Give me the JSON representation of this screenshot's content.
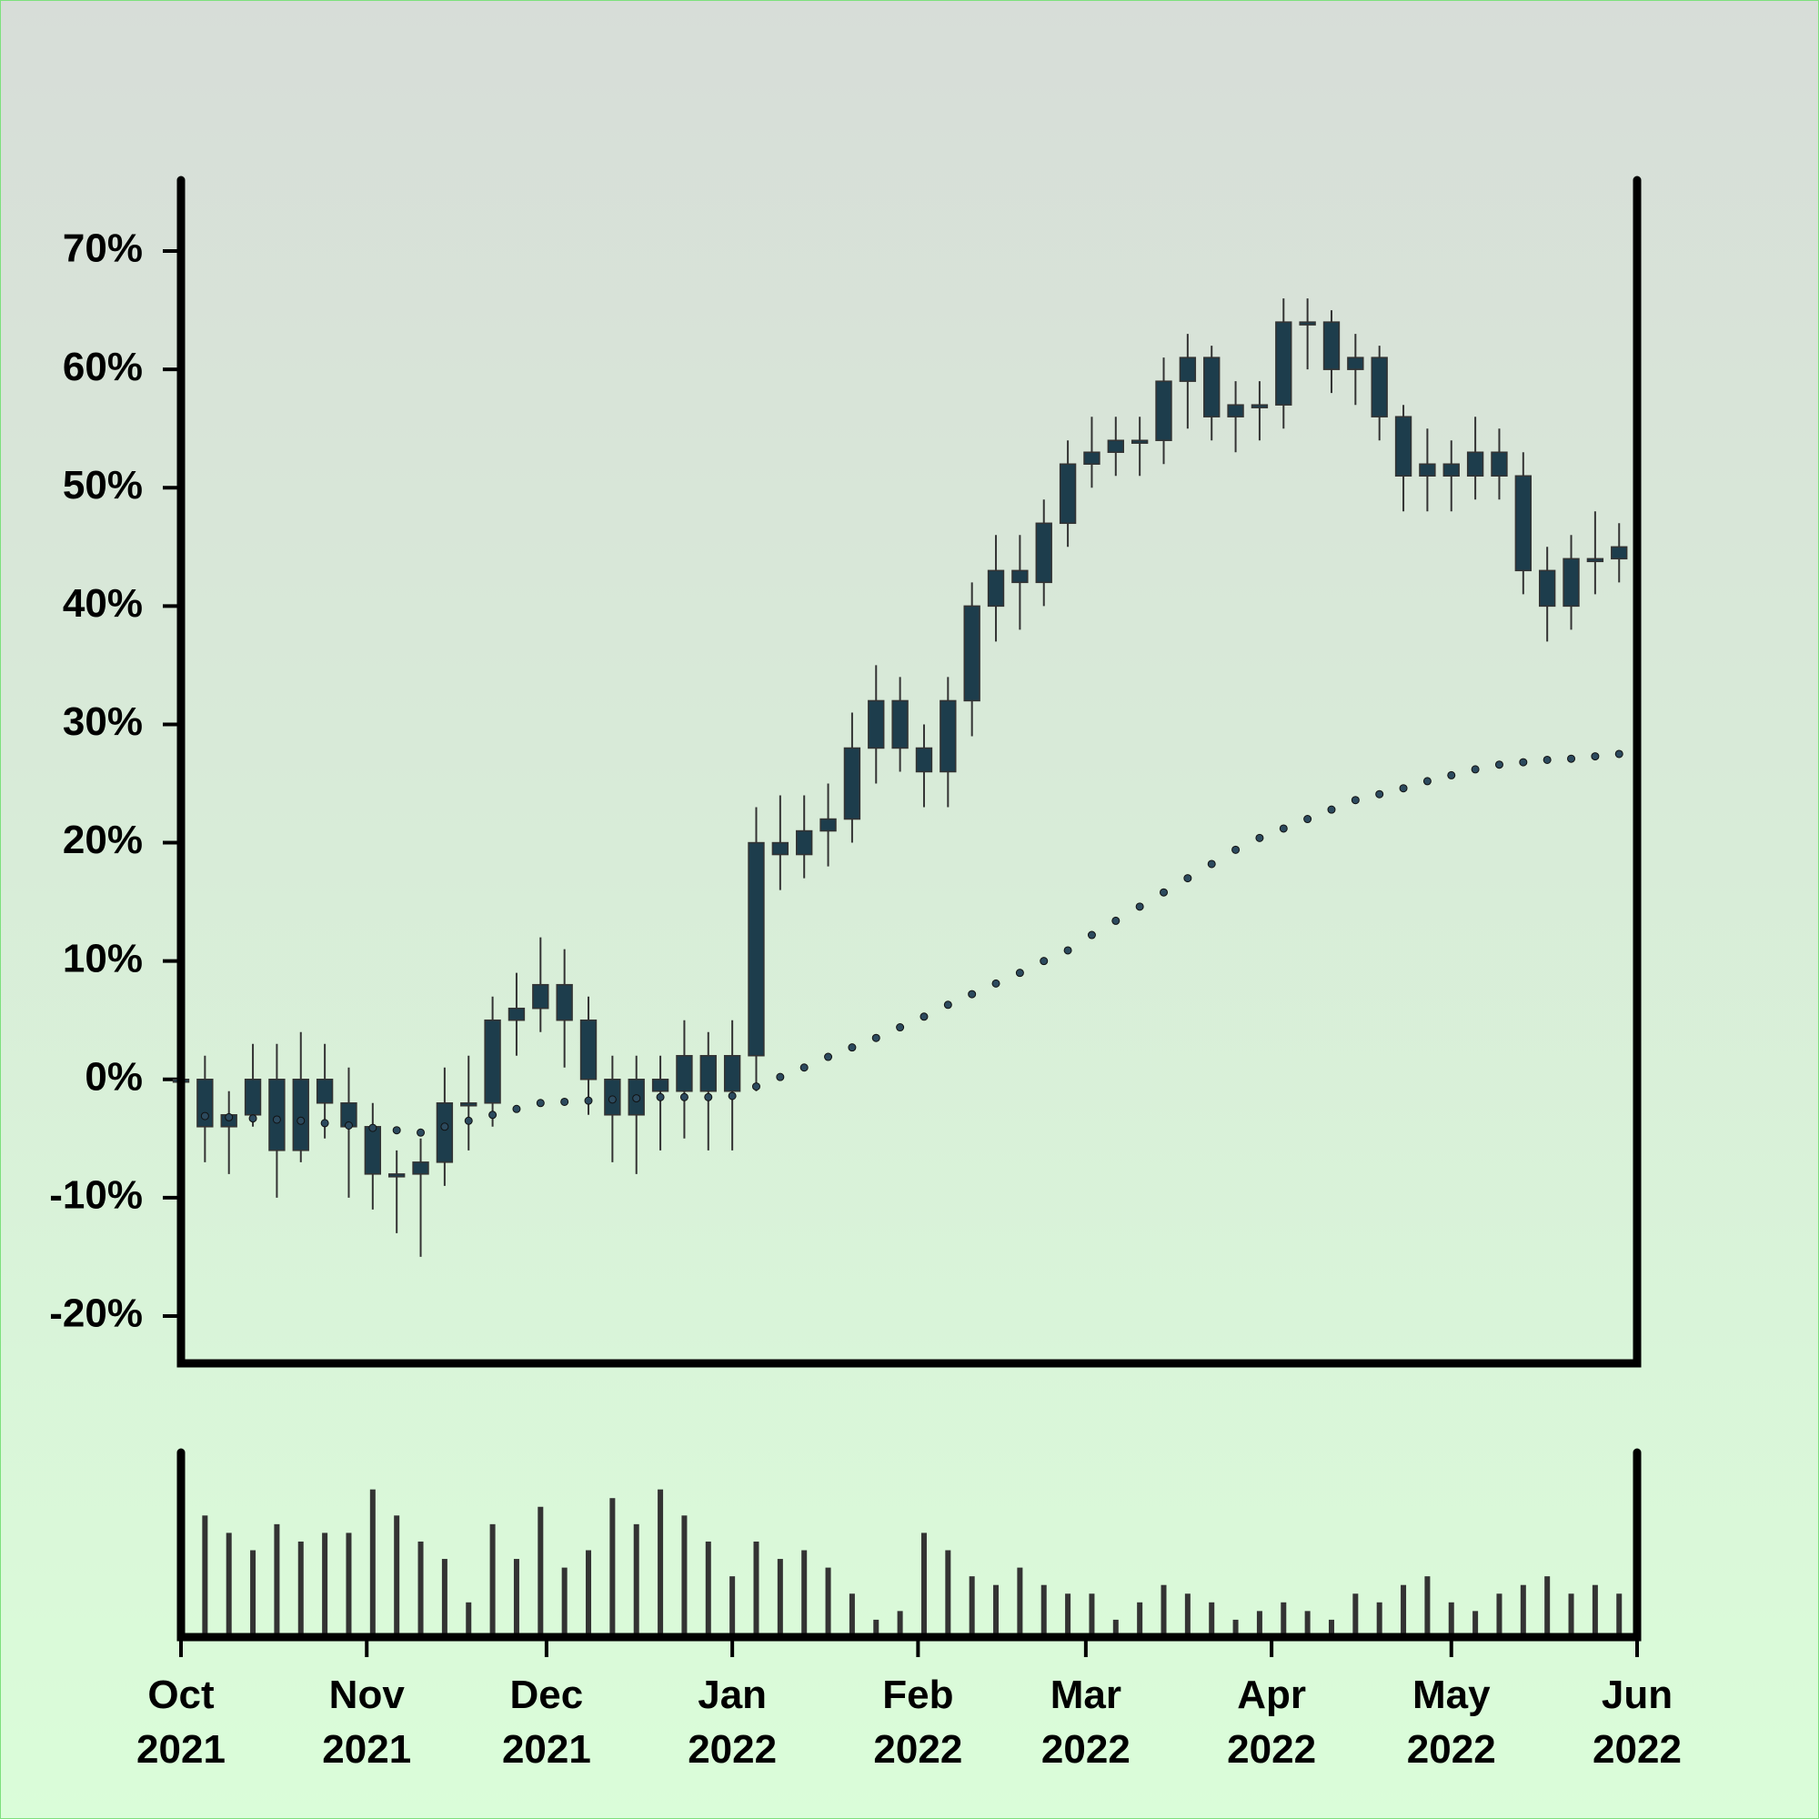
{
  "chart_data": {
    "type": "candlestick",
    "x": [
      0,
      4,
      8,
      12,
      16,
      20,
      24,
      28,
      32,
      36,
      40,
      44,
      48,
      52,
      56,
      60,
      64,
      68,
      72,
      76,
      80,
      84,
      88,
      92,
      96,
      100,
      104,
      108,
      112,
      116,
      120,
      124,
      128,
      132,
      136,
      140,
      144,
      148,
      152,
      156,
      160,
      164,
      168,
      172,
      176,
      180,
      184,
      188,
      192,
      196,
      200,
      204,
      208,
      212,
      216,
      220,
      224,
      228,
      232,
      236,
      240
    ],
    "open": [
      0,
      0,
      -4,
      -3,
      0,
      -6,
      0,
      -2,
      -4,
      -8,
      -8,
      -7,
      -2,
      -2,
      5,
      6,
      8,
      5,
      0,
      -3,
      0,
      -1,
      2,
      -1,
      2,
      20,
      19,
      21,
      22,
      28,
      32,
      28,
      26,
      32,
      40,
      43,
      42,
      47,
      52,
      53,
      54,
      54,
      59,
      61,
      56,
      57,
      57,
      64,
      64,
      60,
      61,
      56,
      51,
      52,
      51,
      53,
      51,
      43,
      40,
      44,
      44
    ],
    "high": [
      1,
      2,
      -1,
      3,
      3,
      4,
      3,
      1,
      -2,
      -6,
      -5,
      1,
      2,
      7,
      9,
      12,
      11,
      7,
      2,
      2,
      2,
      5,
      4,
      5,
      23,
      24,
      24,
      25,
      31,
      35,
      34,
      30,
      34,
      42,
      46,
      46,
      49,
      54,
      56,
      56,
      56,
      61,
      63,
      62,
      59,
      59,
      66,
      66,
      65,
      63,
      62,
      57,
      55,
      54,
      56,
      55,
      53,
      45,
      46,
      48,
      47
    ],
    "low": [
      -3,
      -7,
      -8,
      -4,
      -10,
      -7,
      -5,
      -10,
      -11,
      -13,
      -15,
      -9,
      -6,
      -4,
      2,
      4,
      1,
      -3,
      -7,
      -8,
      -6,
      -5,
      -6,
      -6,
      -1,
      16,
      17,
      18,
      20,
      25,
      26,
      23,
      23,
      29,
      37,
      38,
      40,
      45,
      50,
      51,
      51,
      52,
      55,
      54,
      53,
      54,
      55,
      60,
      58,
      57,
      54,
      48,
      48,
      48,
      49,
      49,
      41,
      37,
      38,
      41,
      42
    ],
    "close": [
      0,
      -4,
      -3,
      0,
      -6,
      0,
      -2,
      -4,
      -8,
      -8,
      -7,
      -2,
      -2,
      5,
      6,
      8,
      5,
      0,
      -3,
      0,
      -1,
      2,
      -1,
      2,
      20,
      19,
      21,
      22,
      28,
      32,
      28,
      26,
      32,
      40,
      43,
      42,
      47,
      52,
      53,
      54,
      54,
      59,
      61,
      56,
      57,
      57,
      64,
      64,
      60,
      61,
      56,
      51,
      52,
      51,
      53,
      51,
      43,
      40,
      44,
      44,
      45
    ],
    "ma": [
      -3,
      -3.1,
      -3.2,
      -3.3,
      -3.4,
      -3.5,
      -3.7,
      -3.9,
      -4.1,
      -4.3,
      -4.5,
      -4,
      -3.5,
      -3,
      -2.5,
      -2,
      -1.9,
      -1.8,
      -1.7,
      -1.6,
      -1.5,
      -1.5,
      -1.5,
      -1.4,
      -0.6,
      0.2,
      1,
      1.9,
      2.7,
      3.5,
      4.4,
      5.3,
      6.3,
      7.2,
      8.1,
      9,
      10,
      10.9,
      12.2,
      13.4,
      14.6,
      15.8,
      17,
      18.2,
      19.4,
      20.4,
      21.2,
      22,
      22.8,
      23.6,
      24.1,
      24.6,
      25.2,
      25.7,
      26.2,
      26.6,
      26.8,
      27,
      27.1,
      27.3,
      27.5
    ],
    "volume": [
      55,
      70,
      60,
      50,
      65,
      55,
      60,
      60,
      85,
      70,
      55,
      45,
      20,
      65,
      45,
      75,
      40,
      50,
      80,
      65,
      85,
      70,
      55,
      35,
      55,
      45,
      50,
      40,
      25,
      10,
      15,
      60,
      50,
      35,
      30,
      40,
      30,
      25,
      25,
      10,
      20,
      30,
      25,
      20,
      10,
      15,
      20,
      15,
      10,
      25,
      20,
      30,
      35,
      20,
      15,
      25,
      30,
      35,
      25,
      30,
      25
    ],
    "colors": {
      "body": "#1d3d4c",
      "wick": "#333333",
      "ma": "#2c4a5e",
      "volume": "#333333"
    },
    "xlim": [
      0,
      243
    ],
    "xticks": [
      {
        "value": 0,
        "label": "Oct 2021"
      },
      {
        "value": 31,
        "label": "Nov 2021"
      },
      {
        "value": 61,
        "label": "Dec 2021"
      },
      {
        "value": 92,
        "label": "Jan 2022"
      },
      {
        "value": 123,
        "label": "Feb 2022"
      },
      {
        "value": 151,
        "label": "Mar 2022"
      },
      {
        "value": 182,
        "label": "Apr 2022"
      },
      {
        "value": 212,
        "label": "May 2022"
      },
      {
        "value": 243,
        "label": "Jun 2022"
      }
    ],
    "ylim": [
      -24,
      76
    ],
    "yticks": [
      {
        "value": -20,
        "label": "-20%"
      },
      {
        "value": -10,
        "label": "-10%"
      },
      {
        "value": 0,
        "label": "0%"
      },
      {
        "value": 10,
        "label": "10%"
      },
      {
        "value": 20,
        "label": "20%"
      },
      {
        "value": 30,
        "label": "30%"
      },
      {
        "value": 40,
        "label": "40%"
      },
      {
        "value": 50,
        "label": "50%"
      },
      {
        "value": 60,
        "label": "60%"
      },
      {
        "value": 70,
        "label": "70%"
      }
    ],
    "vlim": [
      0,
      100
    ]
  }
}
